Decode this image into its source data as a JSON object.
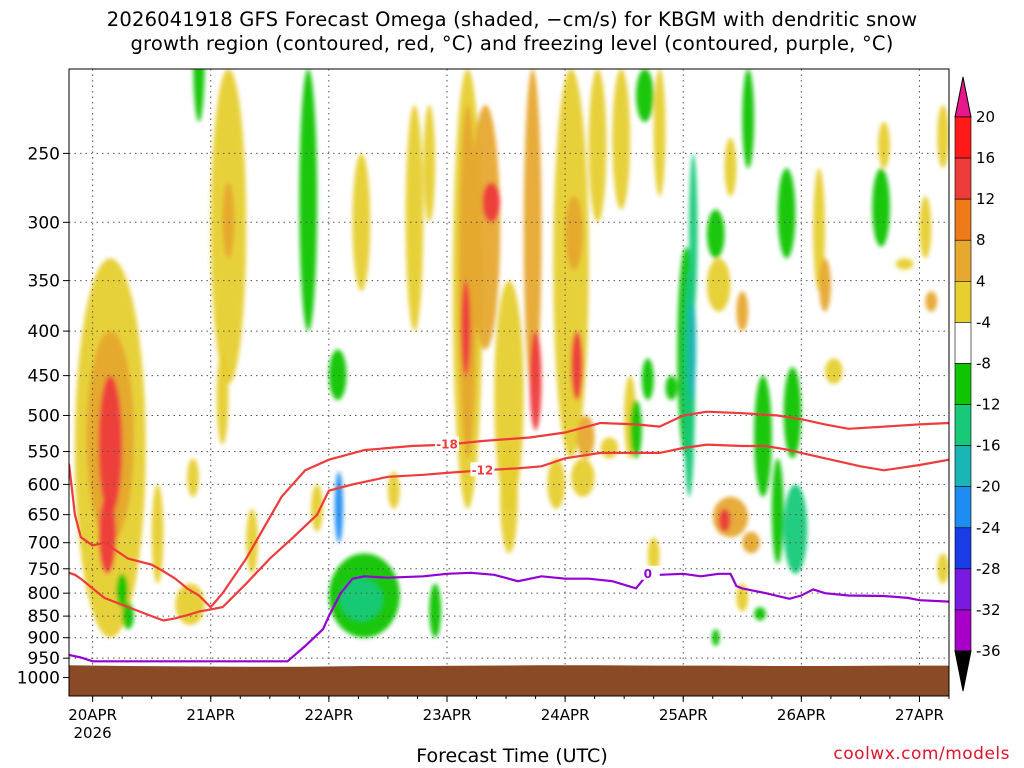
{
  "title_line1": "2026041918 GFS Forecast Omega (shaded, −cm/s) for KBGM with dendritic snow",
  "title_line2": "growth region (contoured, red, °C) and freezing level (contoured, purple, °C)",
  "credit": "coolwx.com/models",
  "colors": {
    "ground": "#8b4a26",
    "dgz_contour": "#ee3b3b",
    "freezing_contour": "#9400d3",
    "grid": "#555555"
  },
  "chart_data": {
    "type": "heatmap",
    "xlabel": "Forecast Time (UTC)",
    "ylabel": "",
    "x_ticks": [
      "20APR",
      "21APR",
      "22APR",
      "23APR",
      "24APR",
      "25APR",
      "26APR",
      "27APR"
    ],
    "x_tick_year": "2026",
    "x_range_days": [
      19.8,
      27.25
    ],
    "y_axis": "pressure (hPa), inverted",
    "y_ticks": [
      250,
      300,
      350,
      400,
      450,
      500,
      550,
      600,
      650,
      700,
      750,
      800,
      850,
      900,
      950,
      1000
    ],
    "ylim": [
      1050,
      200
    ],
    "colorbar": {
      "levels": [
        20,
        16,
        12,
        8,
        4,
        -4,
        -8,
        -12,
        -16,
        -20,
        -24,
        -28,
        -32,
        -36
      ],
      "colors": [
        "#ff1a1a",
        "#ee3b3b",
        "#ee7a1a",
        "#e6a82e",
        "#e6cf2e",
        "#ffffff",
        "#11c400",
        "#17c978",
        "#1ab5b5",
        "#1e8cf0",
        "#1a3ce6",
        "#7a1ae0",
        "#a800c8",
        "#a0a0a0"
      ],
      "top_arrow": "#e8178c",
      "bottom_arrow": "#000000"
    },
    "surface_pressure_hpa": [
      968,
      970,
      971,
      972,
      972,
      970,
      970,
      969,
      968,
      968,
      969,
      969,
      970,
      970,
      969,
      969
    ],
    "contours": [
      {
        "label": "-18",
        "color": "#ee3b3b",
        "day": [
          19.8,
          19.85,
          19.9,
          20.0,
          20.1,
          20.3,
          20.5,
          20.6,
          20.7,
          20.8,
          20.9,
          21.0,
          21.1,
          21.3,
          21.6,
          21.8,
          22.0,
          22.3,
          22.7,
          23.0,
          23.3,
          23.7,
          24.0,
          24.3,
          24.6,
          24.8,
          25.0,
          25.2,
          25.5,
          25.8,
          26.0,
          26.2,
          26.4,
          26.7,
          27.0,
          27.25
        ],
        "hpa": [
          568,
          650,
          690,
          705,
          700,
          730,
          742,
          755,
          770,
          790,
          805,
          830,
          800,
          730,
          620,
          578,
          562,
          548,
          542,
          540,
          535,
          530,
          523,
          510,
          512,
          515,
          500,
          495,
          497,
          500,
          505,
          512,
          518,
          515,
          512,
          510
        ]
      },
      {
        "label": "-12",
        "color": "#ee3b3b",
        "day": [
          19.8,
          19.85,
          19.9,
          20.0,
          20.1,
          20.3,
          20.5,
          20.6,
          20.7,
          20.8,
          20.9,
          21.0,
          21.1,
          21.3,
          21.5,
          21.7,
          21.9,
          22.0,
          22.2,
          22.5,
          22.8,
          23.0,
          23.3,
          23.6,
          23.8,
          24.0,
          24.3,
          24.6,
          24.8,
          25.0,
          25.2,
          25.5,
          25.7,
          25.9,
          26.0,
          26.2,
          26.5,
          26.7,
          27.0,
          27.25
        ],
        "hpa": [
          758,
          762,
          770,
          790,
          810,
          830,
          850,
          860,
          855,
          848,
          840,
          835,
          830,
          780,
          730,
          690,
          650,
          610,
          600,
          588,
          585,
          582,
          578,
          575,
          572,
          560,
          552,
          552,
          552,
          545,
          540,
          542,
          542,
          548,
          552,
          560,
          572,
          578,
          570,
          562
        ]
      },
      {
        "label": "0",
        "color": "#9400d3",
        "day": [
          19.8,
          19.9,
          20.0,
          21.65,
          21.8,
          21.95,
          22.0,
          22.1,
          22.2,
          22.3,
          22.5,
          22.8,
          23.0,
          23.2,
          23.4,
          23.6,
          23.8,
          24.0,
          24.2,
          24.4,
          24.6,
          24.7,
          24.8,
          25.0,
          25.15,
          25.3,
          25.4,
          25.45,
          25.5,
          25.7,
          25.9,
          26.0,
          26.1,
          26.2,
          26.4,
          26.7,
          26.9,
          27.0,
          27.25
        ],
        "hpa": [
          942,
          948,
          958,
          958,
          920,
          880,
          850,
          800,
          770,
          765,
          768,
          765,
          760,
          758,
          762,
          775,
          765,
          770,
          770,
          775,
          790,
          760,
          762,
          760,
          765,
          760,
          760,
          785,
          790,
          800,
          812,
          805,
          792,
          800,
          805,
          806,
          810,
          815,
          818
        ]
      }
    ]
  }
}
